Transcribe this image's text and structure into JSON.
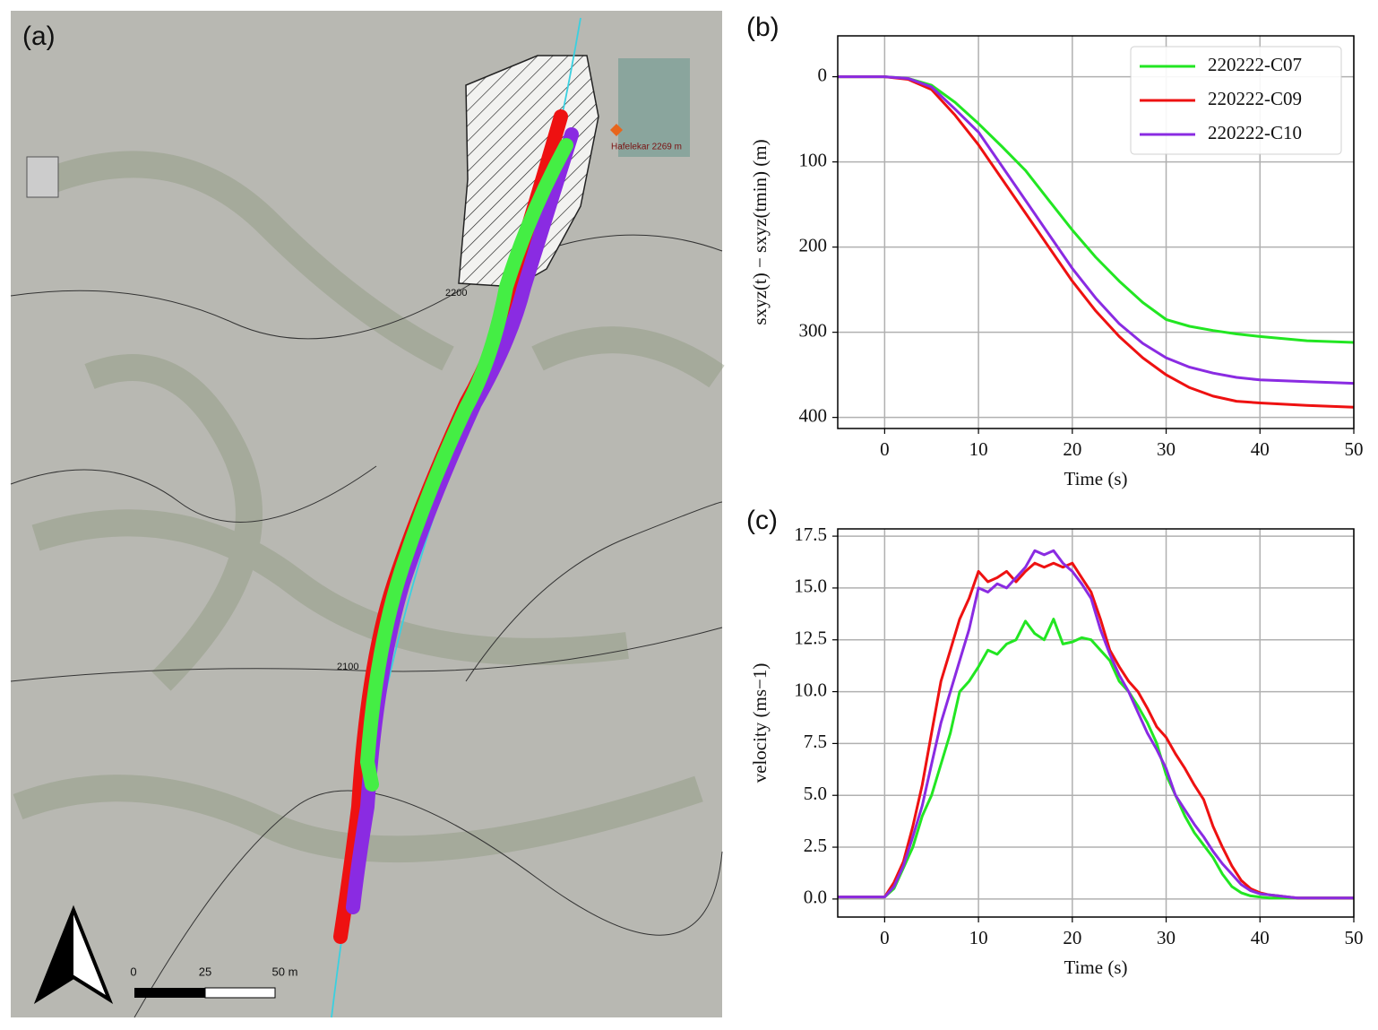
{
  "map": {
    "label": "(a)",
    "contour_upper": "2200",
    "contour_lower": "2100",
    "station": "Hafelekar 2269 m",
    "scale_labels": [
      "0",
      "25",
      "50 m"
    ]
  },
  "chart_data": [
    {
      "type": "line",
      "title": "(b)",
      "xlabel": "Time (s)",
      "ylabel": "sxyz(t) − sxyz(tmin) (m)",
      "xlim": [
        -5,
        50
      ],
      "xticks": [
        0,
        10,
        20,
        30,
        40,
        50
      ],
      "ylim": [
        -48,
        413
      ],
      "y_inverted": true,
      "yticks": [
        0,
        100,
        200,
        300,
        400
      ],
      "grid": true,
      "legend": "upper right",
      "x": [
        -5,
        0,
        2.5,
        5,
        7.5,
        10,
        12.5,
        15,
        17.5,
        20,
        22.5,
        25,
        27.5,
        30,
        32.5,
        35,
        37.5,
        40,
        45,
        50
      ],
      "series": [
        {
          "name": "220222-C07",
          "color": "#22e622",
          "values": [
            0,
            0,
            2,
            10,
            30,
            55,
            82,
            110,
            145,
            180,
            212,
            240,
            265,
            285,
            293,
            298,
            302,
            305,
            310,
            312
          ]
        },
        {
          "name": "220222-C09",
          "color": "#ee1111",
          "values": [
            0,
            0,
            3,
            15,
            45,
            80,
            120,
            160,
            200,
            240,
            275,
            305,
            330,
            350,
            365,
            375,
            381,
            383,
            386,
            388
          ]
        },
        {
          "name": "220222-C10",
          "color": "#8a2be2",
          "values": [
            0,
            0,
            2,
            12,
            38,
            65,
            105,
            145,
            185,
            225,
            260,
            290,
            313,
            330,
            341,
            348,
            353,
            356,
            358,
            360
          ]
        }
      ]
    },
    {
      "type": "line",
      "title": "(c)",
      "xlabel": "Time (s)",
      "ylabel": "velocity (ms−1)",
      "xlim": [
        -5,
        50
      ],
      "xticks": [
        0,
        10,
        20,
        30,
        40,
        50
      ],
      "ylim": [
        -0.87,
        17.85
      ],
      "yticks": [
        {
          "value": 0,
          "label": "0.0"
        },
        2.5,
        {
          "value": 5,
          "label": "5.0"
        },
        7.5,
        {
          "value": 10,
          "label": "10.0"
        },
        12.5,
        {
          "value": 15,
          "label": "15.0"
        },
        17.5
      ],
      "grid": true,
      "x": [
        -5,
        -4,
        -3,
        -2,
        -1,
        0,
        1,
        2,
        3,
        4,
        5,
        6,
        7,
        8,
        9,
        10,
        11,
        12,
        13,
        14,
        15,
        16,
        17,
        18,
        19,
        20,
        21,
        22,
        23,
        24,
        25,
        26,
        27,
        28,
        29,
        30,
        31,
        32,
        33,
        34,
        35,
        36,
        37,
        38,
        39,
        40,
        41,
        42,
        43,
        44,
        45,
        46,
        47,
        48,
        49,
        50
      ],
      "series": [
        {
          "name": "220222-C07",
          "color": "#22e622",
          "values": [
            0.1,
            0.1,
            0.1,
            0.1,
            0.1,
            0.1,
            0.5,
            1.5,
            2.5,
            4.0,
            5.0,
            6.5,
            8.0,
            10.0,
            10.5,
            11.2,
            12.0,
            11.8,
            12.3,
            12.5,
            13.4,
            12.8,
            12.5,
            13.5,
            12.3,
            12.4,
            12.6,
            12.5,
            12.0,
            11.5,
            10.5,
            10.0,
            9.3,
            8.5,
            7.5,
            6.0,
            5.0,
            4.0,
            3.2,
            2.6,
            2.0,
            1.2,
            0.6,
            0.3,
            0.15,
            0.1,
            0.05,
            0.05,
            0.05,
            0.05,
            0.05,
            0.05,
            0.05,
            0.05,
            0.05,
            0.05
          ]
        },
        {
          "name": "220222-C09",
          "color": "#ee1111",
          "values": [
            0.1,
            0.1,
            0.1,
            0.1,
            0.1,
            0.1,
            0.8,
            1.8,
            3.5,
            5.5,
            8.0,
            10.5,
            12.0,
            13.5,
            14.5,
            15.8,
            15.3,
            15.5,
            15.8,
            15.3,
            15.8,
            16.2,
            16.0,
            16.2,
            16.0,
            16.2,
            15.5,
            14.8,
            13.5,
            12.0,
            11.2,
            10.5,
            10.0,
            9.2,
            8.3,
            7.8,
            7.0,
            6.3,
            5.5,
            4.8,
            3.5,
            2.5,
            1.6,
            0.9,
            0.5,
            0.3,
            0.2,
            0.15,
            0.1,
            0.05,
            0.05,
            0.05,
            0.05,
            0.05,
            0.05,
            0.05
          ]
        },
        {
          "name": "220222-C10",
          "color": "#8a2be2",
          "values": [
            0.1,
            0.1,
            0.1,
            0.1,
            0.1,
            0.1,
            0.6,
            1.6,
            3.0,
            4.5,
            6.5,
            8.5,
            10.0,
            11.5,
            13.0,
            15.0,
            14.8,
            15.2,
            15.0,
            15.5,
            16.0,
            16.8,
            16.6,
            16.8,
            16.2,
            15.8,
            15.2,
            14.5,
            13.0,
            11.8,
            10.8,
            10.0,
            9.0,
            8.0,
            7.2,
            6.3,
            5.0,
            4.3,
            3.6,
            3.0,
            2.3,
            1.7,
            1.2,
            0.7,
            0.4,
            0.25,
            0.2,
            0.15,
            0.1,
            0.05,
            0.05,
            0.05,
            0.05,
            0.05,
            0.05,
            0.05
          ]
        }
      ]
    }
  ]
}
